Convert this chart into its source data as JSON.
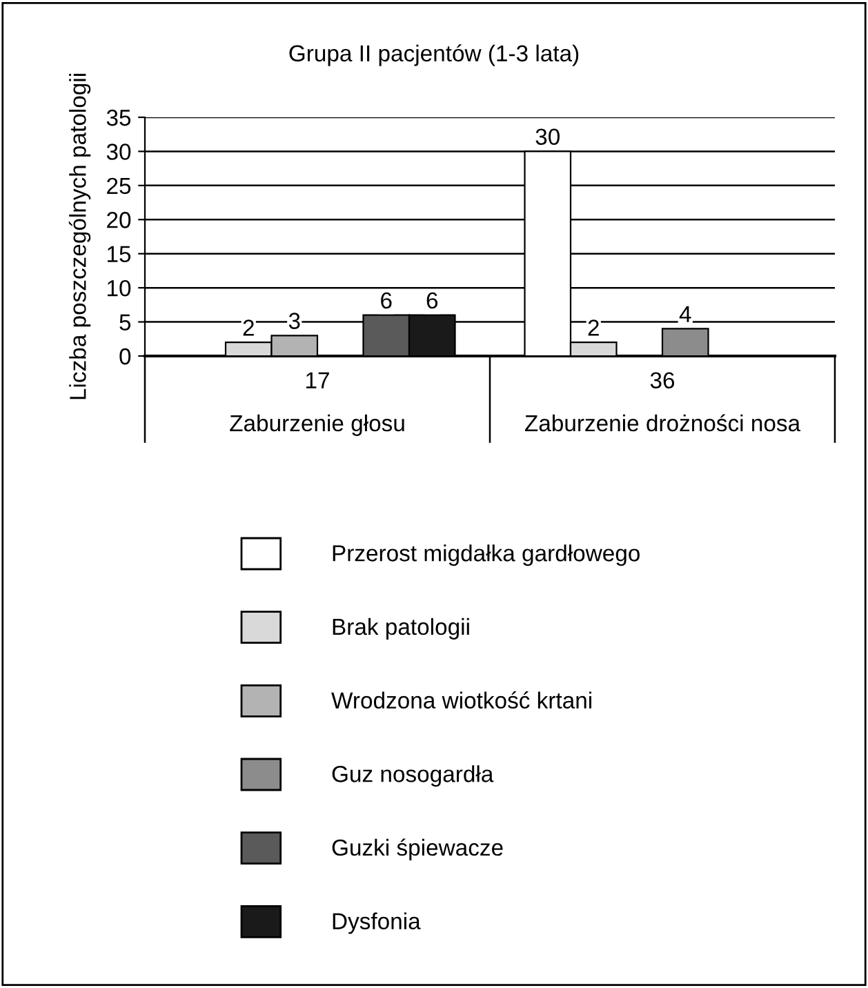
{
  "chart_data": {
    "type": "bar",
    "title": "Grupa II pacjentów (1-3 lata)",
    "ylabel": "Liczba poszczególnych patologii",
    "categories": [
      "Zaburzenie głosu",
      "Zaburzenie drożności nosa"
    ],
    "totals": [
      "17",
      "36"
    ],
    "series": [
      {
        "name": "Przerost migdałka gardłowego",
        "color": "#ffffff",
        "values": [
          null,
          30
        ]
      },
      {
        "name": "Brak patologii",
        "color": "#d9d9d9",
        "values": [
          2,
          2
        ]
      },
      {
        "name": "Wrodzona wiotkość krtani",
        "color": "#b3b3b3",
        "values": [
          3,
          null
        ]
      },
      {
        "name": "Guz nosogardła",
        "color": "#8c8c8c",
        "values": [
          null,
          4
        ]
      },
      {
        "name": "Guzki śpiewacze",
        "color": "#5a5a5a",
        "values": [
          6,
          null
        ]
      },
      {
        "name": "Dysfonia",
        "color": "#1a1a1a",
        "values": [
          6,
          null
        ]
      }
    ],
    "ylim": [
      0,
      35
    ],
    "yticks": [
      0,
      5,
      10,
      15,
      20,
      25,
      30,
      35
    ],
    "grid": "y",
    "legend": "bottom",
    "data_labels": true
  }
}
